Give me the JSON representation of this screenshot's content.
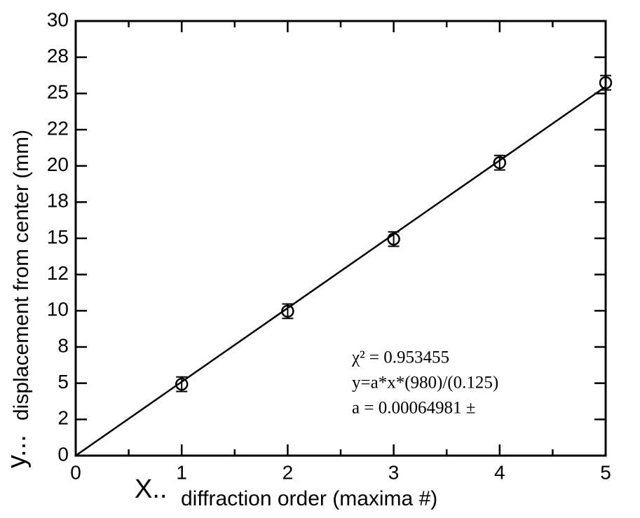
{
  "chart_data": {
    "type": "scatter",
    "xlabel_prefix": "X..",
    "xlabel": "diffraction order (maxima #)",
    "ylabel_prefix": "y...",
    "ylabel": "displacement from center (mm)",
    "xlim": [
      0,
      5
    ],
    "ylim": [
      0,
      30
    ],
    "xticks": [
      0,
      1,
      2,
      3,
      4,
      5
    ],
    "yticks": [
      0,
      {
        "value": 2.5,
        "label": "2"
      },
      5,
      {
        "value": 7.5,
        "label": "8"
      },
      10,
      {
        "value": 12.5,
        "label": "12"
      },
      15,
      {
        "value": 17.5,
        "label": "18"
      },
      20,
      {
        "value": 22.5,
        "label": "22"
      },
      25,
      {
        "value": 27.5,
        "label": "28"
      },
      30
    ],
    "series": [
      {
        "kind": "points",
        "color": "#000000",
        "x": [
          1,
          2,
          3,
          4,
          5
        ],
        "values": [
          4.93,
          9.97,
          14.95,
          20.22,
          25.74
        ],
        "errors": [
          0.5,
          0.5,
          0.5,
          0.5,
          0.5
        ]
      },
      {
        "kind": "line",
        "color": "#000000",
        "x": [
          0,
          5
        ],
        "values": [
          0,
          25.47
        ]
      }
    ],
    "annotations": [
      "χ² = 0.953455",
      "y=a*x*(980)/(0.125)",
      "a = 0.00064981 ±"
    ]
  }
}
